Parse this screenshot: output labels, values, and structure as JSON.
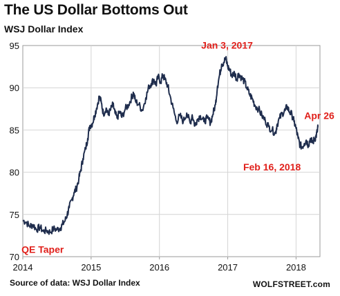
{
  "title": "The US Dollar Bottoms Out",
  "subtitle": "WSJ Dollar Index",
  "source": "Source of data: WSJ Dollar Index",
  "brand": "WOLFSTREET.com",
  "colors": {
    "line": "#1f2d4d",
    "annotation": "#e0201b",
    "grid": "#d4d4d4",
    "axis": "#999999"
  },
  "chart_data": {
    "type": "line",
    "title": "The US Dollar Bottoms Out",
    "subtitle": "WSJ Dollar Index",
    "xlabel": "",
    "ylabel": "",
    "xlim": [
      2014.0,
      2018.35
    ],
    "ylim": [
      70,
      95
    ],
    "grid": true,
    "x_ticks": [
      2014,
      2015,
      2016,
      2017,
      2018
    ],
    "x_tick_labels": [
      "2014",
      "2015",
      "2016",
      "2017",
      "2018"
    ],
    "y_ticks": [
      70,
      75,
      80,
      85,
      90,
      95
    ],
    "y_tick_labels": [
      "70",
      "75",
      "80",
      "85",
      "90",
      "95"
    ],
    "series": [
      {
        "color": "#1f2d4d",
        "x": [
          2014.0,
          2014.05,
          2014.1,
          2014.15,
          2014.2,
          2014.25,
          2014.3,
          2014.35,
          2014.4,
          2014.45,
          2014.5,
          2014.55,
          2014.58,
          2014.62,
          2014.65,
          2014.68,
          2014.72,
          2014.75,
          2014.78,
          2014.82,
          2014.85,
          2014.88,
          2014.92,
          2014.95,
          2014.98,
          2015.02,
          2015.05,
          2015.08,
          2015.12,
          2015.15,
          2015.18,
          2015.22,
          2015.25,
          2015.28,
          2015.32,
          2015.35,
          2015.38,
          2015.42,
          2015.45,
          2015.5,
          2015.55,
          2015.6,
          2015.62,
          2015.65,
          2015.7,
          2015.75,
          2015.8,
          2015.85,
          2015.88,
          2015.92,
          2015.95,
          2015.98,
          2016.02,
          2016.05,
          2016.08,
          2016.12,
          2016.15,
          2016.2,
          2016.25,
          2016.3,
          2016.35,
          2016.4,
          2016.45,
          2016.48,
          2016.52,
          2016.55,
          2016.6,
          2016.65,
          2016.7,
          2016.75,
          2016.78,
          2016.82,
          2016.85,
          2016.88,
          2016.91,
          2016.94,
          2016.97,
          2017.0,
          2017.03,
          2017.06,
          2017.1,
          2017.13,
          2017.16,
          2017.2,
          2017.24,
          2017.28,
          2017.32,
          2017.36,
          2017.4,
          2017.45,
          2017.5,
          2017.55,
          2017.6,
          2017.65,
          2017.7,
          2017.72,
          2017.76,
          2017.8,
          2017.84,
          2017.87,
          2017.9,
          2017.94,
          2017.97,
          2018.0,
          2018.03,
          2018.06,
          2018.09,
          2018.12,
          2018.15,
          2018.18,
          2018.21,
          2018.24,
          2018.27,
          2018.29,
          2018.31,
          2018.32
        ],
        "y": [
          74.3,
          74.1,
          73.6,
          73.8,
          73.2,
          73.5,
          73.0,
          73.1,
          72.9,
          73.3,
          73.2,
          73.4,
          73.8,
          74.3,
          75.0,
          75.8,
          76.8,
          77.6,
          78.0,
          79.2,
          80.3,
          81.6,
          82.8,
          84.0,
          85.5,
          85.8,
          86.7,
          87.6,
          89.0,
          88.2,
          86.9,
          87.6,
          86.8,
          87.3,
          88.0,
          87.0,
          86.4,
          87.2,
          86.5,
          87.5,
          88.0,
          89.0,
          89.4,
          88.4,
          88.0,
          87.3,
          88.8,
          90.2,
          90.5,
          91.0,
          90.3,
          91.3,
          90.7,
          91.5,
          91.0,
          90.3,
          89.2,
          87.6,
          86.0,
          86.7,
          86.0,
          87.0,
          85.8,
          86.8,
          85.5,
          86.2,
          86.7,
          86.0,
          86.4,
          85.9,
          86.8,
          88.0,
          90.2,
          91.5,
          92.8,
          93.0,
          93.5,
          92.5,
          92.1,
          91.4,
          91.8,
          91.0,
          91.7,
          91.2,
          90.8,
          90.0,
          89.2,
          88.7,
          87.9,
          87.5,
          86.7,
          86.1,
          85.4,
          85.0,
          84.6,
          85.6,
          86.4,
          87.0,
          87.3,
          87.8,
          87.2,
          86.8,
          86.0,
          85.2,
          84.0,
          83.2,
          83.0,
          83.4,
          83.8,
          83.2,
          84.0,
          83.5,
          83.9,
          84.2,
          84.8,
          85.3
        ]
      }
    ],
    "annotations": [
      {
        "text": "Jan 3, 2017",
        "x": 2017.01,
        "y": 93.5
      },
      {
        "text": "Apr 26",
        "x": 2018.32,
        "y": 85.3
      },
      {
        "text": "Feb 16, 2018",
        "x": 2018.13,
        "y": 82.9
      },
      {
        "text": "QE Taper",
        "x": 2014.25,
        "y": 72.9
      }
    ]
  }
}
